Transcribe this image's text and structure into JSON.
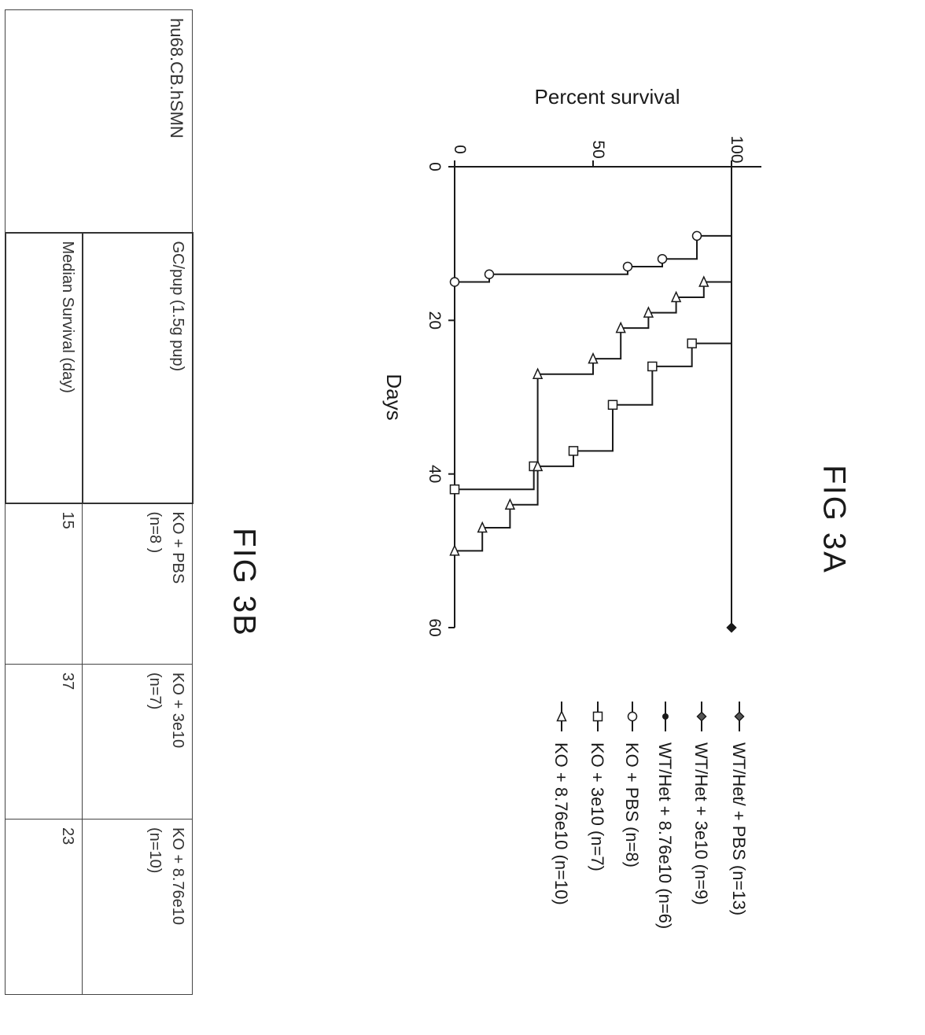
{
  "figures": {
    "fig3a_label": "FIG 3A",
    "fig3b_label": "FIG 3B"
  },
  "chart_data": {
    "type": "line",
    "subtype": "kaplan-meier step",
    "title": "",
    "xlabel": "Days",
    "ylabel": "Percent survival",
    "xlim": [
      0,
      60
    ],
    "ylim": [
      0,
      100
    ],
    "x_ticks": [
      0,
      20,
      40,
      60
    ],
    "y_ticks": [
      0,
      50,
      100
    ],
    "legend_position": "right",
    "series": [
      {
        "name": "WT/Het/ + PBS (n=13)",
        "marker": "diamond",
        "steps": [
          [
            0,
            100
          ],
          [
            60,
            100
          ]
        ]
      },
      {
        "name": "WT/Het + 3e10 (n=9)",
        "marker": "diamond",
        "steps": [
          [
            0,
            100
          ],
          [
            60,
            100
          ]
        ]
      },
      {
        "name": "WT/Het + 8.76e10 (n=6)",
        "marker": "dot",
        "steps": [
          [
            0,
            100
          ],
          [
            60,
            100
          ]
        ]
      },
      {
        "name": "KO + PBS (n=8)",
        "marker": "circle",
        "steps": [
          [
            0,
            100
          ],
          [
            9,
            87.5
          ],
          [
            12,
            75
          ],
          [
            13,
            62.5
          ],
          [
            14,
            12.5
          ],
          [
            15,
            0
          ]
        ]
      },
      {
        "name": "KO + 3e10 (n=7)",
        "marker": "square",
        "steps": [
          [
            0,
            100
          ],
          [
            23,
            85.7
          ],
          [
            26,
            71.4
          ],
          [
            31,
            57.1
          ],
          [
            37,
            42.9
          ],
          [
            39,
            28.6
          ],
          [
            42,
            0
          ]
        ]
      },
      {
        "name": "KO + 8.76e10 (n=10)",
        "marker": "triangle",
        "steps": [
          [
            0,
            100
          ],
          [
            15,
            90
          ],
          [
            17,
            80
          ],
          [
            19,
            70
          ],
          [
            21,
            60
          ],
          [
            25,
            50
          ],
          [
            27,
            30
          ],
          [
            39,
            30
          ],
          [
            44,
            20
          ],
          [
            47,
            10
          ],
          [
            50,
            0
          ]
        ]
      }
    ]
  },
  "table": {
    "title": "hu68.CB.hSMN",
    "row1_header": "GC/pup (1.5g pup)",
    "row2_header": "Median Survival (day)",
    "columns": [
      {
        "group": "KO + PBS",
        "n": "(n=8 )",
        "median": "15"
      },
      {
        "group": "KO + 3e10",
        "n": "(n=7)",
        "median": "37"
      },
      {
        "group": "KO + 8.76e10",
        "n": "(n=10)",
        "median": "23"
      }
    ]
  }
}
